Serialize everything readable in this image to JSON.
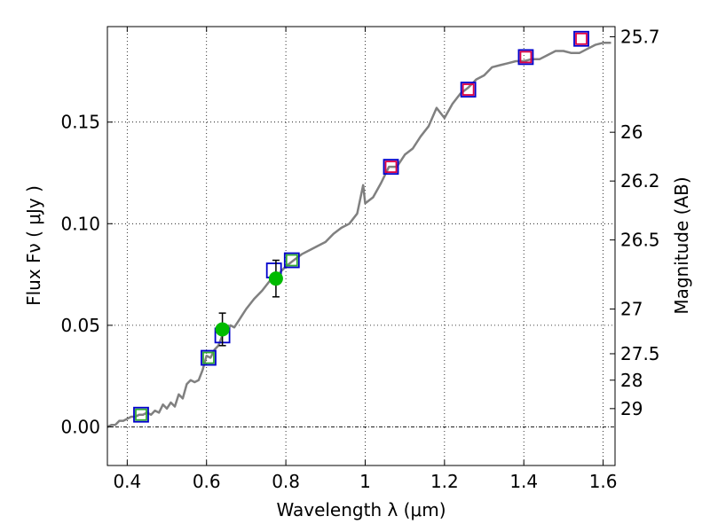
{
  "chart_data": {
    "type": "line",
    "xlabel": "Wavelength  λ (μm)",
    "ylabel": "Flux  Fν  ( μJy )",
    "y2label": "Magnitude (AB)",
    "xlim": [
      0.35,
      1.63
    ],
    "ylim": [
      -0.019,
      0.197
    ],
    "grid": true,
    "x_ticks": [
      0.4,
      0.6,
      0.8,
      1.0,
      1.2,
      1.4,
      1.6
    ],
    "x_tick_labels": [
      "0.4",
      "0.6",
      "0.8",
      "1",
      "1.2",
      "1.4",
      "1.6"
    ],
    "y_ticks": [
      0.0,
      0.05,
      0.1,
      0.15
    ],
    "y_tick_labels": [
      "0.00",
      "0.05",
      "0.10",
      "0.15"
    ],
    "y2_ticks": [
      {
        "label": "25.7",
        "flux": 0.192
      },
      {
        "label": "26",
        "flux": 0.145
      },
      {
        "label": "26.2",
        "flux": 0.121
      },
      {
        "label": "26.5",
        "flux": 0.092
      },
      {
        "label": "27",
        "flux": 0.058
      },
      {
        "label": "27.5",
        "flux": 0.036
      },
      {
        "label": "28",
        "flux": 0.023
      },
      {
        "label": "29",
        "flux": 0.009
      }
    ],
    "colors": {
      "model": "#808080",
      "open_box": "#0000cc",
      "red_box": "#dd0044",
      "green_box": "#33aa33",
      "detection": "#00bb00",
      "errorbar": "#000000",
      "zero_line": "#000000"
    },
    "series": [
      {
        "kind": "model_spectrum",
        "x": [
          0.35,
          0.36,
          0.37,
          0.38,
          0.39,
          0.4,
          0.41,
          0.42,
          0.43,
          0.44,
          0.45,
          0.46,
          0.47,
          0.48,
          0.49,
          0.5,
          0.51,
          0.52,
          0.53,
          0.54,
          0.55,
          0.56,
          0.57,
          0.58,
          0.59,
          0.6,
          0.61,
          0.62,
          0.63,
          0.64,
          0.65,
          0.66,
          0.67,
          0.68,
          0.69,
          0.7,
          0.72,
          0.74,
          0.76,
          0.78,
          0.8,
          0.82,
          0.84,
          0.86,
          0.88,
          0.9,
          0.92,
          0.94,
          0.96,
          0.98,
          0.995,
          1.0,
          1.02,
          1.04,
          1.06,
          1.08,
          1.1,
          1.12,
          1.14,
          1.16,
          1.18,
          1.2,
          1.22,
          1.24,
          1.26,
          1.28,
          1.3,
          1.32,
          1.34,
          1.36,
          1.38,
          1.4,
          1.42,
          1.44,
          1.46,
          1.48,
          1.5,
          1.52,
          1.54,
          1.56,
          1.58,
          1.6,
          1.62
        ],
        "y": [
          0.0,
          0.001,
          0.001,
          0.003,
          0.003,
          0.004,
          0.005,
          0.005,
          0.006,
          0.006,
          0.007,
          0.006,
          0.008,
          0.007,
          0.011,
          0.009,
          0.012,
          0.01,
          0.016,
          0.014,
          0.021,
          0.023,
          0.022,
          0.023,
          0.028,
          0.035,
          0.034,
          0.038,
          0.04,
          0.045,
          0.046,
          0.05,
          0.049,
          0.052,
          0.055,
          0.058,
          0.063,
          0.067,
          0.072,
          0.075,
          0.079,
          0.082,
          0.085,
          0.087,
          0.089,
          0.091,
          0.095,
          0.098,
          0.1,
          0.105,
          0.119,
          0.11,
          0.113,
          0.12,
          0.128,
          0.128,
          0.134,
          0.137,
          0.143,
          0.148,
          0.157,
          0.152,
          0.159,
          0.164,
          0.167,
          0.171,
          0.173,
          0.177,
          0.178,
          0.179,
          0.18,
          0.18,
          0.181,
          0.181,
          0.183,
          0.185,
          0.185,
          0.184,
          0.184,
          0.186,
          0.188,
          0.189,
          0.189
        ]
      },
      {
        "kind": "open_boxes_blue",
        "x": [
          0.435,
          0.605,
          0.77,
          0.815,
          1.065,
          1.26,
          1.405,
          1.545
        ],
        "y": [
          0.006,
          0.034,
          0.077,
          0.082,
          0.128,
          0.166,
          0.182,
          0.191
        ]
      },
      {
        "kind": "inner_boxes_green",
        "x": [
          0.435,
          0.605,
          0.815
        ],
        "y": [
          0.006,
          0.034,
          0.082
        ]
      },
      {
        "kind": "inner_boxes_red",
        "x": [
          1.065,
          1.26,
          1.405,
          1.545
        ],
        "y": [
          0.128,
          0.166,
          0.182,
          0.191
        ]
      },
      {
        "kind": "detections",
        "x": [
          0.64,
          0.775
        ],
        "y": [
          0.048,
          0.073
        ],
        "yerr": [
          0.008,
          0.009
        ]
      },
      {
        "kind": "blue_box_alone",
        "x": [
          0.64
        ],
        "y": [
          0.045
        ]
      }
    ]
  }
}
